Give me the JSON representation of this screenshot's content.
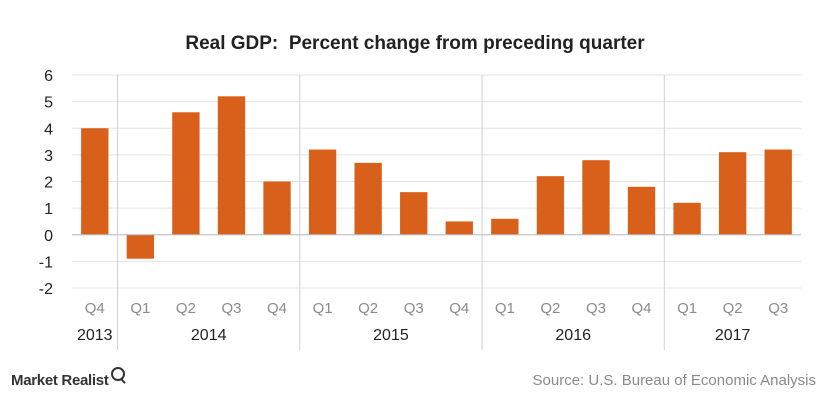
{
  "chart_data": {
    "type": "bar",
    "title": "Real GDP:  Percent change from preceding quarter",
    "categories": [
      "Q4",
      "Q1",
      "Q2",
      "Q3",
      "Q4",
      "Q1",
      "Q2",
      "Q3",
      "Q4",
      "Q1",
      "Q2",
      "Q3",
      "Q4",
      "Q1",
      "Q2",
      "Q3"
    ],
    "years": [
      {
        "label": "2013",
        "start": 0,
        "end": 0
      },
      {
        "label": "2014",
        "start": 1,
        "end": 4
      },
      {
        "label": "2015",
        "start": 5,
        "end": 8
      },
      {
        "label": "2016",
        "start": 9,
        "end": 12
      },
      {
        "label": "2017",
        "start": 13,
        "end": 15
      }
    ],
    "values": [
      4.0,
      -0.9,
      4.6,
      5.2,
      2.0,
      3.2,
      2.7,
      1.6,
      0.5,
      0.6,
      2.2,
      2.8,
      1.8,
      1.2,
      3.1,
      3.2
    ],
    "ylim": [
      -2,
      6
    ],
    "yticks": [
      6,
      5,
      4,
      3,
      2,
      1,
      0,
      -1,
      -2
    ],
    "grid": true,
    "bar_color": "#d9601b",
    "xlabel": "",
    "ylabel": ""
  },
  "branding": {
    "logo_text": "Market Realist",
    "logo_icon": "magnifier-icon"
  },
  "source": "Source: U.S. Bureau of Economic Analysis"
}
